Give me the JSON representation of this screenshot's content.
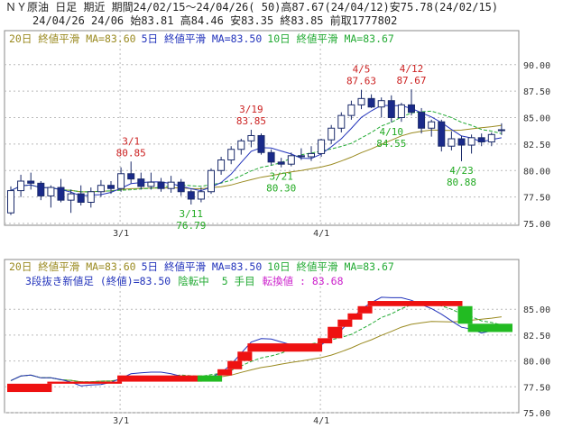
{
  "header": {
    "line1": "ＮＹ原油 日足 期近 期間24/02/15～24/04/26( 50)高87.67(24/04/12)安75.78(24/02/15)",
    "line2": "24/04/26 24/06 始83.81 高84.46 安83.35 終83.85 前取1777802"
  },
  "colors": {
    "up_candle": "#ffffff",
    "down_candle": "#1a2a8a",
    "ma20": "#9a8a20",
    "ma5": "#2233bb",
    "ma10": "#22aa33",
    "kagi_up": "#ee1111",
    "kagi_down": "#22bb22",
    "ann_high": "#cc2222",
    "ann_low": "#22aa22",
    "magenta": "#cc22cc"
  },
  "chart_data": [
    {
      "type": "candlestick",
      "legend": [
        {
          "text": "20日 終値平滑 MA=83.60",
          "color": "#9a8a20"
        },
        {
          "text": "5日 終値平滑 MA=83.50",
          "color": "#2233bb"
        },
        {
          "text": "10日 終値平滑 MA=83.67",
          "color": "#22aa33"
        }
      ],
      "ylim": [
        75.0,
        91.0
      ],
      "yticks": [
        "90.00",
        "87.50",
        "85.00",
        "82.50",
        "80.00",
        "77.50",
        "75.00"
      ],
      "xticks": [
        {
          "label": "3/1",
          "index": 11
        },
        {
          "label": "4/1",
          "index": 31
        }
      ],
      "ohlc": [
        [
          76.0,
          78.5,
          75.8,
          78.1
        ],
        [
          78.1,
          79.6,
          77.5,
          79.0
        ],
        [
          79.0,
          79.8,
          78.2,
          78.8
        ],
        [
          78.8,
          79.0,
          77.2,
          77.6
        ],
        [
          77.6,
          78.6,
          76.5,
          78.4
        ],
        [
          78.4,
          79.2,
          77.0,
          77.2
        ],
        [
          77.2,
          78.2,
          76.0,
          77.8
        ],
        [
          77.8,
          78.6,
          76.7,
          77.0
        ],
        [
          77.0,
          78.4,
          76.5,
          78.0
        ],
        [
          78.0,
          79.1,
          77.5,
          78.6
        ],
        [
          78.6,
          79.0,
          77.8,
          78.3
        ],
        [
          78.3,
          80.3,
          78.0,
          79.7
        ],
        [
          79.7,
          80.85,
          78.8,
          79.2
        ],
        [
          79.2,
          79.8,
          78.2,
          78.5
        ],
        [
          78.5,
          79.8,
          78.2,
          78.9
        ],
        [
          78.9,
          79.3,
          78.0,
          78.3
        ],
        [
          78.3,
          79.5,
          77.9,
          78.9
        ],
        [
          78.9,
          79.2,
          77.6,
          78.0
        ],
        [
          78.0,
          78.2,
          76.79,
          77.3
        ],
        [
          77.3,
          78.4,
          77.0,
          78.0
        ],
        [
          78.0,
          80.2,
          77.8,
          80.0
        ],
        [
          80.0,
          81.3,
          79.6,
          81.0
        ],
        [
          81.0,
          82.3,
          80.6,
          82.0
        ],
        [
          82.0,
          83.0,
          81.5,
          82.8
        ],
        [
          82.8,
          83.85,
          82.2,
          83.3
        ],
        [
          83.3,
          83.5,
          81.5,
          81.7
        ],
        [
          81.7,
          82.0,
          80.5,
          80.8
        ],
        [
          80.8,
          81.2,
          80.3,
          80.6
        ],
        [
          80.6,
          81.7,
          80.4,
          81.4
        ],
        [
          81.4,
          82.1,
          81.0,
          81.3
        ],
        [
          81.3,
          82.3,
          80.9,
          81.6
        ],
        [
          81.6,
          83.0,
          81.3,
          82.9
        ],
        [
          82.9,
          84.3,
          82.5,
          84.0
        ],
        [
          84.0,
          85.5,
          83.6,
          85.2
        ],
        [
          85.2,
          86.6,
          84.8,
          86.2
        ],
        [
          86.2,
          87.63,
          85.8,
          86.8
        ],
        [
          86.8,
          87.2,
          85.9,
          86.0
        ],
        [
          86.0,
          86.9,
          85.0,
          86.6
        ],
        [
          86.6,
          87.1,
          84.55,
          85.0
        ],
        [
          85.0,
          86.4,
          84.6,
          86.2
        ],
        [
          86.2,
          87.67,
          85.2,
          85.5
        ],
        [
          85.5,
          85.9,
          83.5,
          84.0
        ],
        [
          84.0,
          84.8,
          83.2,
          84.6
        ],
        [
          84.6,
          84.8,
          81.8,
          82.3
        ],
        [
          82.3,
          83.7,
          81.9,
          83.0
        ],
        [
          83.0,
          83.3,
          80.88,
          82.4
        ],
        [
          82.4,
          83.4,
          81.6,
          83.1
        ],
        [
          83.1,
          83.5,
          82.3,
          82.7
        ],
        [
          82.7,
          83.6,
          82.3,
          83.4
        ],
        [
          83.81,
          84.46,
          83.35,
          83.85
        ]
      ],
      "annotations": [
        {
          "date": "3/1",
          "value": "80.85",
          "index": 12,
          "kind": "high"
        },
        {
          "date": "3/11",
          "value": "76.79",
          "index": 18,
          "kind": "low"
        },
        {
          "date": "3/19",
          "value": "83.85",
          "index": 24,
          "kind": "high"
        },
        {
          "date": "3/21",
          "value": "80.30",
          "index": 27,
          "kind": "low"
        },
        {
          "date": "4/5",
          "value": "87.63",
          "index": 35,
          "kind": "high"
        },
        {
          "date": "4/10",
          "value": "84.55",
          "index": 38,
          "kind": "low"
        },
        {
          "date": "4/12",
          "value": "87.67",
          "index": 40,
          "kind": "high"
        },
        {
          "date": "4/23",
          "value": "80.88",
          "index": 45,
          "kind": "low"
        }
      ]
    },
    {
      "type": "three-line-break",
      "legend": [
        {
          "text": "20日 終値平滑 MA=83.60",
          "color": "#9a8a20"
        },
        {
          "text": "5日 終値平滑 MA=83.50",
          "color": "#2233bb"
        },
        {
          "text": "10日 終値平滑 MA=83.67",
          "color": "#22aa33"
        }
      ],
      "info": [
        {
          "text": "3段抜き新値足 (終値)=83.50",
          "color": "#2233bb"
        },
        {
          "text": "陰転中",
          "color": "#22aa33"
        },
        {
          "text": "5 手目",
          "color": "#22aa33"
        },
        {
          "text": "転換値 : 83.68",
          "color": "#cc22cc"
        }
      ],
      "ylim": [
        75.0,
        86.5
      ],
      "yticks": [
        "85.00",
        "82.50",
        "80.00",
        "77.50",
        "75.00"
      ],
      "xticks": [
        {
          "label": "3/1",
          "index": 11
        },
        {
          "label": "4/1",
          "index": 31
        }
      ],
      "bricks": [
        {
          "from": 77.0,
          "to": 77.8,
          "start": 0,
          "end": 4,
          "dir": "up"
        },
        {
          "from": 77.8,
          "to": 78.0,
          "start": 4,
          "end": 11,
          "dir": "up"
        },
        {
          "from": 78.0,
          "to": 78.6,
          "start": 11,
          "end": 19,
          "dir": "up"
        },
        {
          "from": 78.6,
          "to": 78.0,
          "start": 19,
          "end": 21,
          "dir": "down"
        },
        {
          "from": 78.6,
          "to": 79.2,
          "start": 21,
          "end": 22,
          "dir": "up"
        },
        {
          "from": 79.2,
          "to": 80.0,
          "start": 22,
          "end": 23,
          "dir": "up"
        },
        {
          "from": 80.0,
          "to": 80.9,
          "start": 23,
          "end": 24,
          "dir": "up"
        },
        {
          "from": 80.9,
          "to": 81.7,
          "start": 24,
          "end": 31,
          "dir": "up"
        },
        {
          "from": 81.7,
          "to": 82.2,
          "start": 31,
          "end": 32,
          "dir": "up"
        },
        {
          "from": 82.2,
          "to": 83.3,
          "start": 32,
          "end": 33,
          "dir": "up"
        },
        {
          "from": 83.3,
          "to": 84.0,
          "start": 33,
          "end": 34,
          "dir": "up"
        },
        {
          "from": 84.0,
          "to": 84.6,
          "start": 34,
          "end": 35,
          "dir": "up"
        },
        {
          "from": 84.6,
          "to": 85.3,
          "start": 35,
          "end": 36,
          "dir": "up"
        },
        {
          "from": 85.3,
          "to": 85.8,
          "start": 36,
          "end": 45,
          "dir": "up"
        },
        {
          "from": 85.3,
          "to": 83.6,
          "start": 45,
          "end": 46,
          "dir": "down"
        },
        {
          "from": 83.6,
          "to": 83.0,
          "start": 46,
          "end": 50,
          "dir": "down"
        },
        {
          "from": 83.2,
          "to": 82.8,
          "start": 46,
          "end": 50,
          "dir": "down"
        }
      ]
    }
  ]
}
